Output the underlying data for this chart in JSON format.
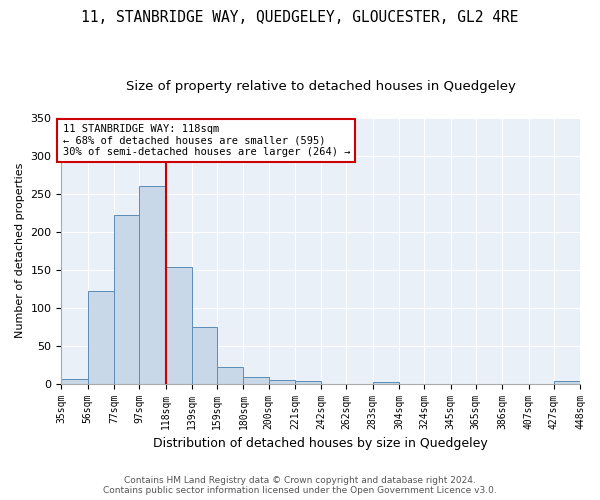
{
  "title": "11, STANBRIDGE WAY, QUEDGELEY, GLOUCESTER, GL2 4RE",
  "subtitle": "Size of property relative to detached houses in Quedgeley",
  "xlabel": "Distribution of detached houses by size in Quedgeley",
  "ylabel": "Number of detached properties",
  "bin_edges": [
    35,
    56,
    77,
    97,
    118,
    139,
    159,
    180,
    200,
    221,
    242,
    262,
    283,
    304,
    324,
    345,
    365,
    386,
    407,
    427,
    448
  ],
  "bar_heights": [
    6,
    122,
    222,
    260,
    153,
    75,
    22,
    9,
    5,
    3,
    0,
    0,
    2,
    0,
    0,
    0,
    0,
    0,
    0,
    3
  ],
  "bar_color": "#c8d8e8",
  "bar_edgecolor": "#5b8db8",
  "redline_x": 118,
  "annotation_text": "11 STANBRIDGE WAY: 118sqm\n← 68% of detached houses are smaller (595)\n30% of semi-detached houses are larger (264) →",
  "annotation_box_color": "#ffffff",
  "annotation_border_color": "#cc0000",
  "footer_text": "Contains HM Land Registry data © Crown copyright and database right 2024.\nContains public sector information licensed under the Open Government Licence v3.0.",
  "ylim": [
    0,
    350
  ],
  "yticks": [
    0,
    50,
    100,
    150,
    200,
    250,
    300,
    350
  ],
  "background_color": "#eaf0f8",
  "grid_color": "#ffffff",
  "title_fontsize": 10.5,
  "subtitle_fontsize": 9.5,
  "xlabel_fontsize": 9,
  "ylabel_fontsize": 8,
  "tick_fontsize": 7,
  "tick_labels": [
    "35sqm",
    "56sqm",
    "77sqm",
    "97sqm",
    "118sqm",
    "139sqm",
    "159sqm",
    "180sqm",
    "200sqm",
    "221sqm",
    "242sqm",
    "262sqm",
    "283sqm",
    "304sqm",
    "324sqm",
    "345sqm",
    "365sqm",
    "386sqm",
    "407sqm",
    "427sqm",
    "448sqm"
  ]
}
